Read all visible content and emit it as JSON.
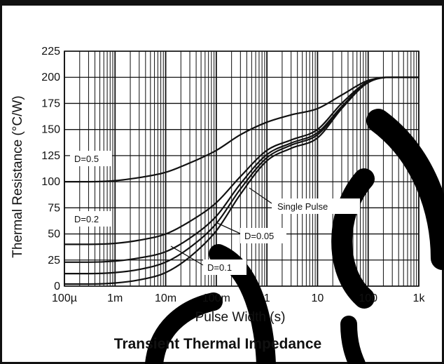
{
  "chart_data": {
    "type": "line",
    "title": "Transient Thermal Impedance",
    "xlabel": "Pulse Width (s)",
    "ylabel": "Thermal Resistance (°C/W)",
    "x_scale": "log",
    "xlim": [
      0.0001,
      1000
    ],
    "ylim": [
      0,
      225
    ],
    "grid": true,
    "x_ticks": [
      {
        "value": 0.0001,
        "label": "100µ"
      },
      {
        "value": 0.001,
        "label": "1m"
      },
      {
        "value": 0.01,
        "label": "10m"
      },
      {
        "value": 0.1,
        "label": "100m"
      },
      {
        "value": 1,
        "label": "1"
      },
      {
        "value": 10,
        "label": "10"
      },
      {
        "value": 100,
        "label": "100"
      },
      {
        "value": 1000,
        "label": "1k"
      }
    ],
    "y_ticks": [
      {
        "value": 0,
        "label": "0"
      },
      {
        "value": 25,
        "label": "25"
      },
      {
        "value": 50,
        "label": "50"
      },
      {
        "value": 75,
        "label": "75"
      },
      {
        "value": 100,
        "label": "100"
      },
      {
        "value": 125,
        "label": "125"
      },
      {
        "value": 150,
        "label": "150"
      },
      {
        "value": 175,
        "label": "175"
      },
      {
        "value": 200,
        "label": "200"
      },
      {
        "value": 225,
        "label": "225"
      }
    ],
    "series": [
      {
        "name": "D=0.5",
        "x": [
          0.0001,
          0.0003,
          0.001,
          0.003,
          0.01,
          0.03,
          0.1,
          0.3,
          1,
          3,
          10,
          30,
          100,
          300,
          1000
        ],
        "y": [
          100,
          100,
          101,
          104,
          109,
          118,
          130,
          145,
          157,
          164,
          170,
          183,
          197,
          200,
          200
        ]
      },
      {
        "name": "D=0.2",
        "x": [
          0.0001,
          0.0003,
          0.001,
          0.003,
          0.01,
          0.03,
          0.1,
          0.3,
          1,
          3,
          10,
          30,
          100,
          300,
          1000
        ],
        "y": [
          40,
          40,
          41,
          44,
          50,
          62,
          80,
          105,
          130,
          140,
          150,
          175,
          196,
          200,
          200
        ]
      },
      {
        "name": "D=0.1",
        "x": [
          0.0001,
          0.0003,
          0.001,
          0.003,
          0.01,
          0.03,
          0.1,
          0.3,
          1,
          3,
          10,
          30,
          100,
          300,
          1000
        ],
        "y": [
          23,
          23,
          24,
          27,
          33,
          46,
          67,
          98,
          126,
          137,
          147,
          172,
          196,
          200,
          200
        ]
      },
      {
        "name": "D=0.05",
        "x": [
          0.0001,
          0.0003,
          0.001,
          0.003,
          0.01,
          0.03,
          0.1,
          0.3,
          1,
          3,
          10,
          30,
          100,
          300,
          1000
        ],
        "y": [
          12,
          12,
          13,
          16,
          23,
          37,
          60,
          93,
          123,
          135,
          145,
          171,
          195,
          200,
          200
        ]
      },
      {
        "name": "Single Pulse",
        "x": [
          0.0001,
          0.0003,
          0.001,
          0.003,
          0.01,
          0.03,
          0.1,
          0.3,
          1,
          3,
          10,
          30,
          100,
          300,
          1000
        ],
        "y": [
          2,
          2,
          3,
          6,
          13,
          28,
          53,
          88,
          120,
          132,
          142,
          170,
          195,
          200,
          200
        ]
      }
    ],
    "annotations": [
      {
        "text": "D=0.5"
      },
      {
        "text": "D=0.2"
      },
      {
        "text": "D=0.1"
      },
      {
        "text": "D=0.05"
      },
      {
        "text": "Single Pulse"
      }
    ]
  }
}
